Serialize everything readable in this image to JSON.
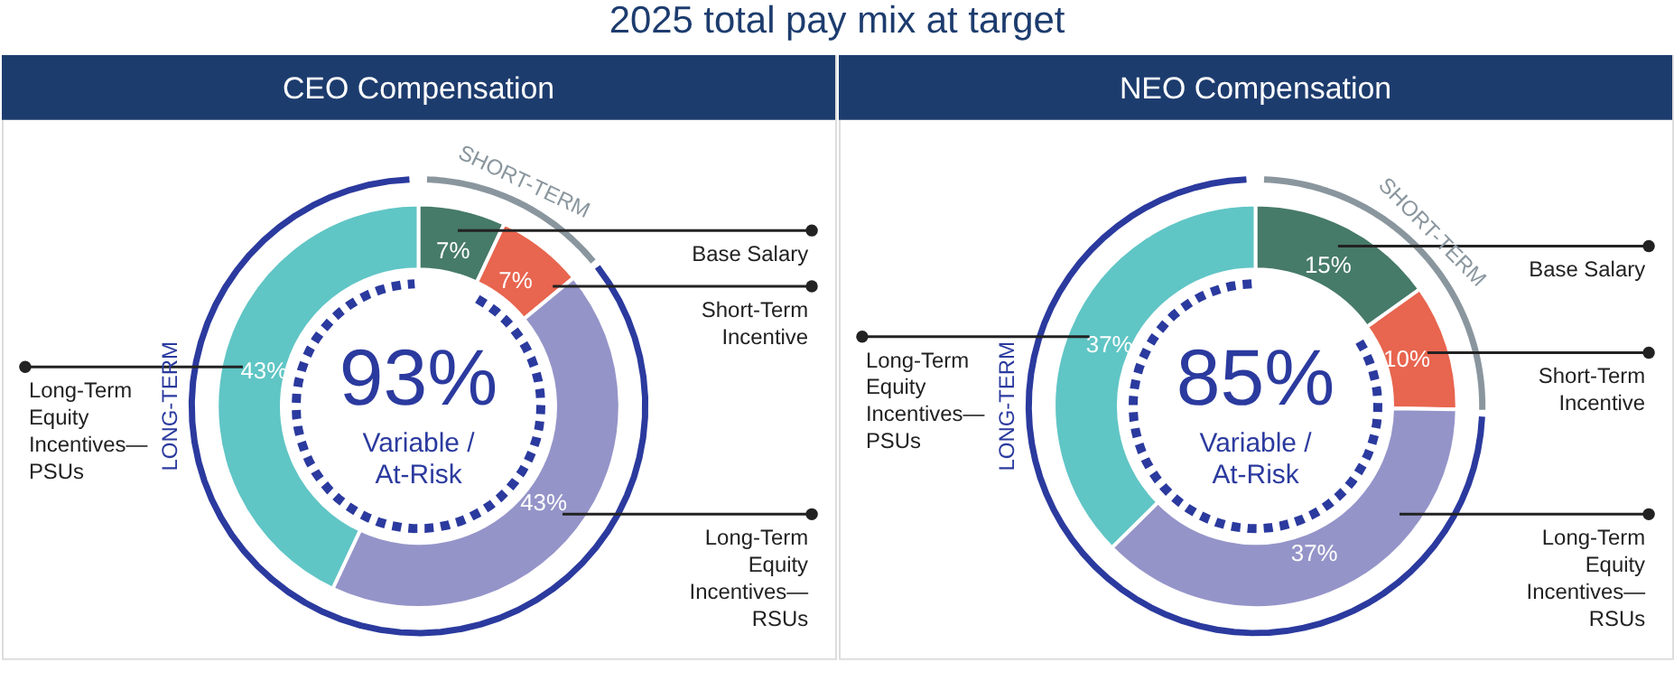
{
  "chart_data": [
    {
      "type": "donut",
      "title": "2025 total pay mix at target",
      "subtitle": "CEO Compensation",
      "categories": [
        "Base Salary",
        "Short-Term Incentive",
        "Long-Term Equity Incentives—RSUs",
        "Long-Term Equity Incentives—PSUs"
      ],
      "values": [
        7,
        7,
        43,
        43
      ],
      "colors": [
        "#467a69",
        "#e8654f",
        "#9594c9",
        "#60c5c5"
      ],
      "value_labels": [
        "7%",
        "7%",
        "43%",
        "43%"
      ],
      "annotations": [
        "93%",
        "Variable / At-Risk",
        "SHORT-TERM",
        "LONG-TERM"
      ]
    },
    {
      "type": "donut",
      "subtitle": "NEO Compensation",
      "categories": [
        "Base Salary",
        "Short-Term Incentive",
        "Long-Term Equity Incentives—RSUs",
        "Long-Term Equity Incentives—PSUs"
      ],
      "values": [
        15,
        10,
        37,
        37
      ],
      "colors": [
        "#467a69",
        "#e8654f",
        "#9594c9",
        "#60c5c5"
      ],
      "value_labels": [
        "15%",
        "10%",
        "37%",
        "37%"
      ],
      "annotations": [
        "85%",
        "Variable / At-Risk",
        "SHORT-TERM",
        "LONG-TERM"
      ]
    }
  ]
}
